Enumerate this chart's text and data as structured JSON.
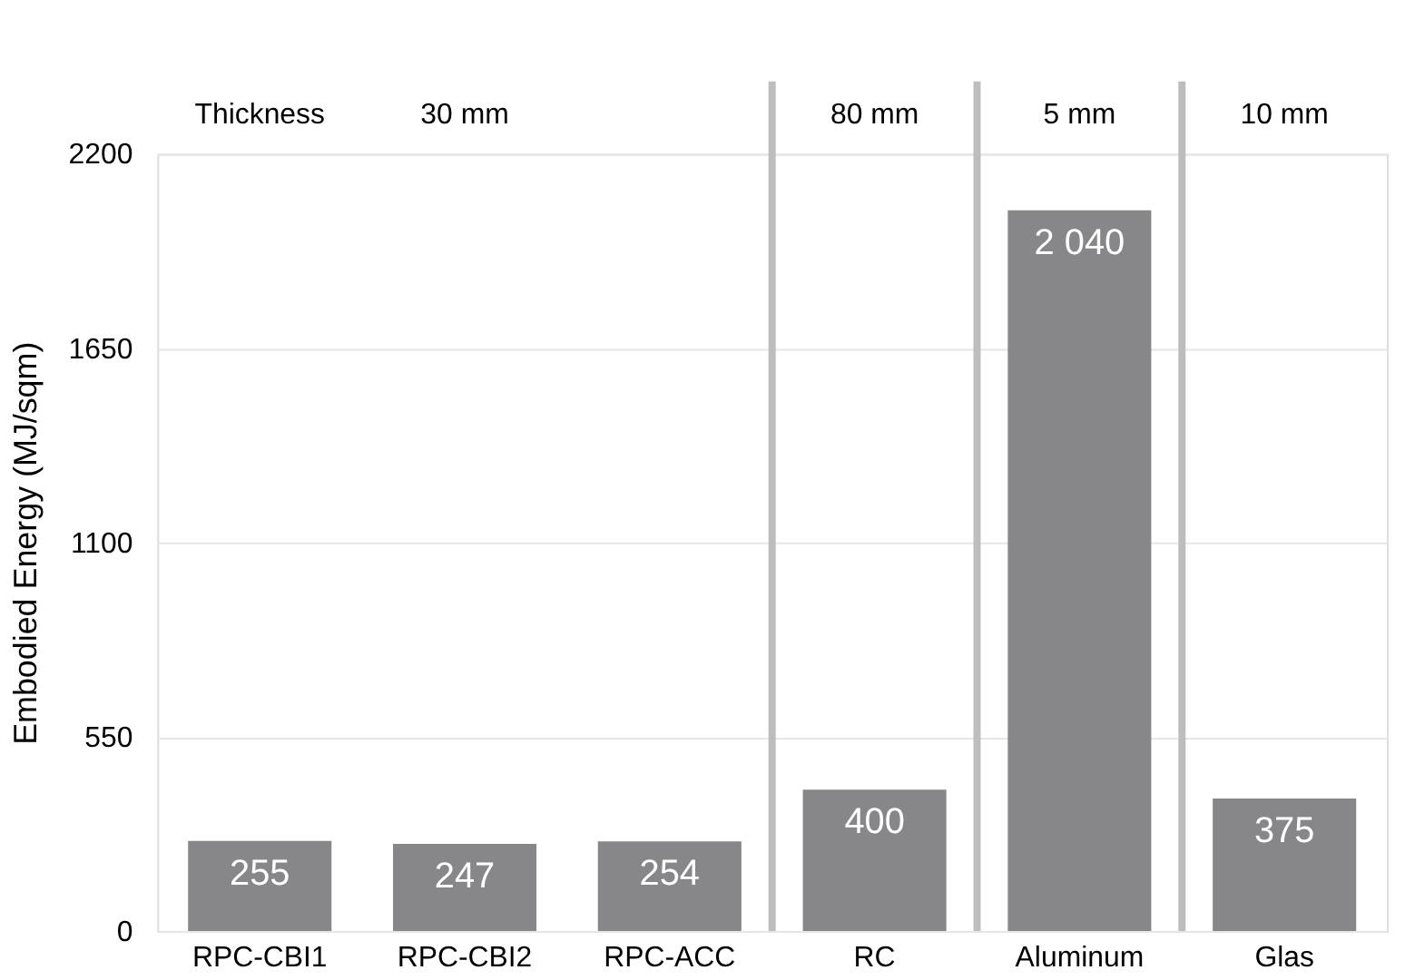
{
  "chart_data": {
    "type": "bar",
    "categories": [
      "RPC-CBI1",
      "RPC-CBI2",
      "RPC-ACC",
      "RC",
      "Aluminum",
      "Glas"
    ],
    "values": [
      255,
      247,
      254,
      400,
      2040,
      375
    ],
    "value_labels": [
      "255",
      "247",
      "254",
      "400",
      "2 040",
      "375"
    ],
    "color": "#87878a",
    "ylabel": "Embodied Energy (MJ/sqm)",
    "ylim": [
      0,
      2200
    ],
    "yticks": [
      0,
      550,
      1100,
      1650,
      2200
    ],
    "grid": "y",
    "annotations": [
      "Thickness",
      "30 mm",
      "80 mm",
      "5 mm",
      "10 mm"
    ]
  }
}
